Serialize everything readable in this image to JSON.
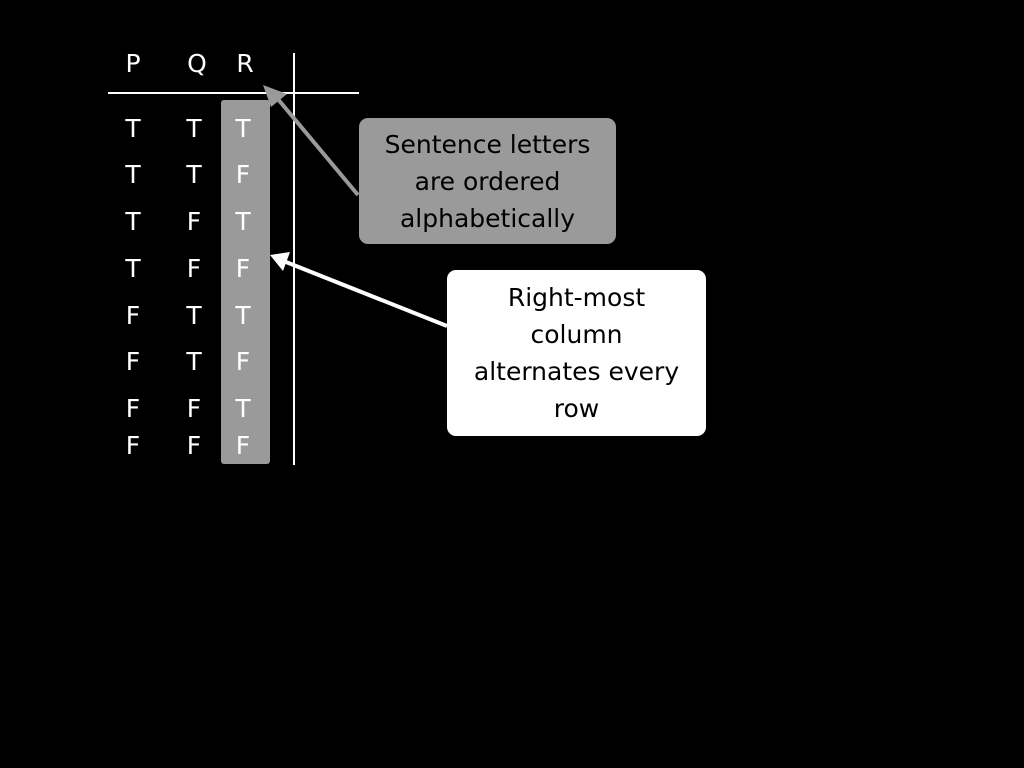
{
  "table": {
    "headers": [
      "P",
      "Q",
      "R"
    ],
    "rows": [
      [
        "T",
        "T",
        "T"
      ],
      [
        "T",
        "T",
        "F"
      ],
      [
        "T",
        "F",
        "T"
      ],
      [
        "T",
        "F",
        "F"
      ],
      [
        "F",
        "T",
        "T"
      ],
      [
        "F",
        "T",
        "F"
      ],
      [
        "F",
        "F",
        "T"
      ],
      [
        "F",
        "F",
        "F"
      ]
    ]
  },
  "callouts": {
    "ordering": "Sentence letters\nare ordered\nalphabetically",
    "alternation": "Right-most\ncolumn\nalternates every\nrow"
  },
  "colors": {
    "background": "#000000",
    "text": "#ffffff",
    "highlight": "#9a9a9a",
    "callout_gray": "#9a9a9a",
    "callout_white": "#ffffff"
  }
}
